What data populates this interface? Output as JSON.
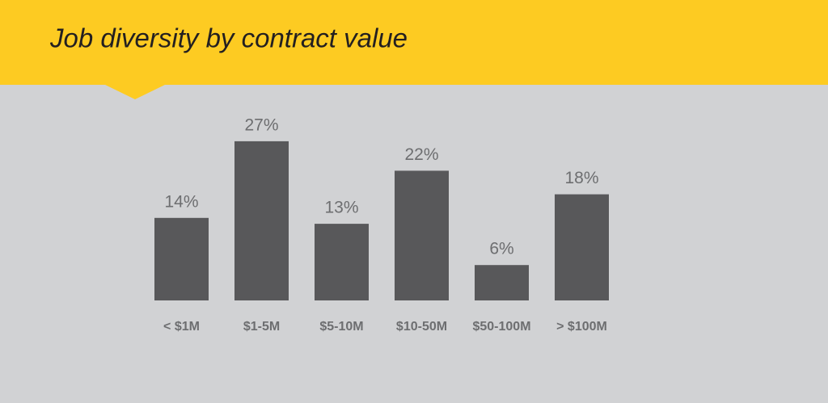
{
  "chart_data": {
    "type": "bar",
    "title": "Job diversity by contract value",
    "categories": [
      "< $1M",
      "$1-5M",
      "$5-10M",
      "$10-50M",
      "$50-100M",
      "> $100M"
    ],
    "values": [
      14,
      27,
      13,
      22,
      6,
      18
    ],
    "value_labels": [
      "14%",
      "27%",
      "13%",
      "22%",
      "6%",
      "18%"
    ],
    "color": "#58585a"
  }
}
